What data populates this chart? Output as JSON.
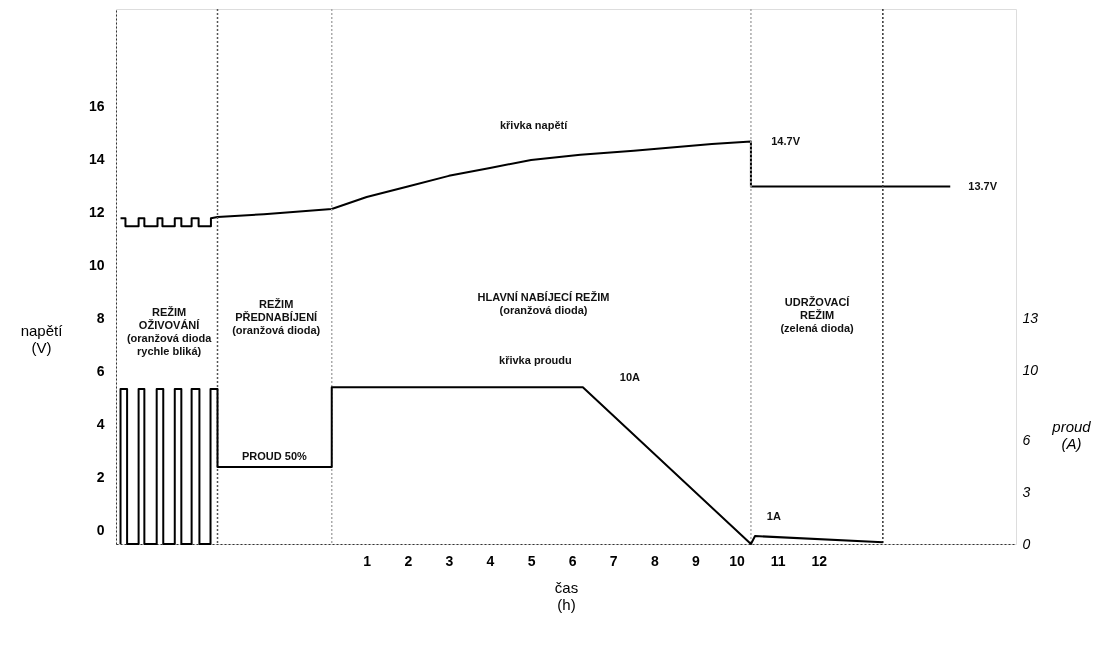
{
  "chart_data": {
    "type": "line",
    "xlabel": "čas\n(h)",
    "ylabel": "napětí\n(V)",
    "y2label": "proud\n(A)",
    "xlim": [
      -5.1,
      16.8
    ],
    "xticks": [
      1,
      2,
      3,
      4,
      5,
      6,
      7,
      8,
      9,
      10,
      11,
      12
    ],
    "ylim": [
      -0.5,
      19.7
    ],
    "yticks": [
      0,
      2,
      4,
      6,
      8,
      10,
      12,
      14,
      16
    ],
    "y2lim": [
      0,
      30.9
    ],
    "y2ticks": [
      0,
      3,
      6,
      10,
      13
    ],
    "grid": false,
    "marker": "none",
    "line_style": "solid",
    "series": [
      {
        "color": "#000000",
        "x": [
          -4.99,
          -4.87,
          -4.87,
          -4.55,
          -4.55,
          -4.41,
          -4.41,
          -4.09,
          -4.09,
          -3.97,
          -3.97,
          -3.67,
          -3.67,
          -3.51,
          -3.51,
          -3.26,
          -3.26,
          -3.09,
          -3.09,
          -2.79,
          -2.79,
          -2.63,
          -1.5,
          0.15,
          1.0,
          2.0,
          3.0,
          4.0,
          5.0,
          6.2,
          7.5,
          9.4,
          10.35,
          10.35,
          15.2
        ],
        "values": [
          11.8,
          11.8,
          11.5,
          11.5,
          11.8,
          11.8,
          11.5,
          11.5,
          11.8,
          11.8,
          11.5,
          11.5,
          11.8,
          11.8,
          11.5,
          11.5,
          11.8,
          11.8,
          11.5,
          11.5,
          11.8,
          11.85,
          11.95,
          12.15,
          12.6,
          13.0,
          13.4,
          13.7,
          14.0,
          14.2,
          14.35,
          14.6,
          14.7,
          13.0,
          13.0
        ]
      },
      {
        "color": "#000000",
        "axis": "y2",
        "x": [
          -4.99,
          -4.99,
          -4.83,
          -4.83,
          -4.55,
          -4.55,
          -4.41,
          -4.41,
          -4.11,
          -4.11,
          -3.95,
          -3.95,
          -3.67,
          -3.67,
          -3.51,
          -3.51,
          -3.26,
          -3.26,
          -3.07,
          -3.07,
          -2.8,
          -2.8,
          -2.63,
          -2.63,
          0.15,
          0.15,
          6.26,
          10.35,
          10.45,
          13.56
        ],
        "values": [
          0,
          8.95,
          8.95,
          0,
          0,
          8.95,
          8.95,
          0,
          0,
          8.95,
          8.95,
          0,
          0,
          8.95,
          8.95,
          0,
          0,
          8.95,
          8.95,
          0,
          0,
          8.95,
          8.95,
          4.45,
          4.45,
          9.05,
          9.05,
          0,
          0.46,
          0.1
        ]
      }
    ],
    "ref_lines": [
      {
        "axis": "x",
        "value": -2.63,
        "color": "#555555",
        "line_style": "dotted"
      },
      {
        "axis": "x",
        "value": 0.15,
        "color": "#aaaaaa",
        "line_style": "dotted"
      },
      {
        "axis": "x",
        "value": 10.35,
        "color": "#aaaaaa",
        "line_style": "dotted"
      },
      {
        "axis": "x",
        "value": 13.56,
        "color": "#333333",
        "line_style": "dotted"
      }
    ],
    "annotations": [
      "křivka napětí",
      "14.7V",
      "13.7V",
      "REŽIM\nOŽIVOVÁNÍ\n(oranžová dioda\nrychle bliká)",
      "REŽIM\nPŘEDNABÍJENÍ\n(oranžová dioda)",
      "HLAVNÍ NABÍJECÍ REŽIM\n(oranžová dioda)",
      "UDRŽOVACÍ\nREŽIM\n(zelená dioda)",
      "křivka proudu",
      "10A",
      "PROUD 50%",
      "1A"
    ]
  }
}
